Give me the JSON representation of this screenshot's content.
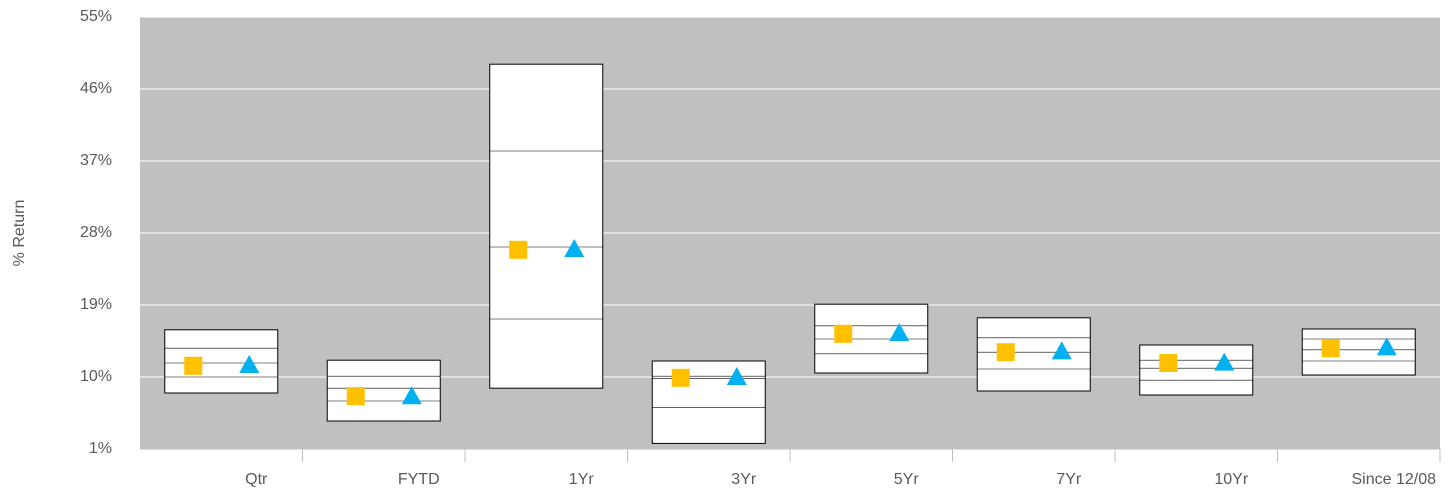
{
  "chart_data": {
    "type": "floating-box",
    "y_label": "% Return",
    "categories": [
      "Qtr",
      "FYTD",
      "1Yr",
      "3Yr",
      "5Yr",
      "7Yr",
      "10Yr",
      "Since 12/08"
    ],
    "box_high": [
      15.9,
      12.1,
      49.1,
      12.0,
      19.1,
      17.4,
      14.0,
      16.0
    ],
    "box_upper": [
      13.6,
      10.1,
      38.25,
      10.1,
      16.4,
      14.9,
      12.1,
      14.75
    ],
    "box_median": [
      11.75,
      8.6,
      26.25,
      9.8,
      14.75,
      13.1,
      11.1,
      13.4
    ],
    "box_lower": [
      10.0,
      7.0,
      17.25,
      6.2,
      12.9,
      11.0,
      9.6,
      12.0
    ],
    "box_low": [
      8.0,
      4.5,
      8.6,
      1.7,
      10.5,
      8.25,
      7.75,
      10.25
    ],
    "box_color": "#ffffff",
    "series": [
      {
        "marker": "square",
        "color": "#ffc000",
        "values": [
          11.4,
          7.6,
          25.9,
          9.9,
          15.4,
          13.1,
          11.75,
          13.6
        ]
      },
      {
        "marker": "triangle",
        "color": "#00b0f0",
        "values": [
          11.5,
          7.6,
          26.0,
          10.0,
          15.5,
          13.2,
          11.8,
          13.7
        ]
      }
    ],
    "ylim": [
      1,
      55
    ],
    "yticks": [
      {
        "value": 1,
        "label": "1%"
      },
      {
        "value": 10,
        "label": "10%"
      },
      {
        "value": 19,
        "label": "19%"
      },
      {
        "value": 28,
        "label": "28%"
      },
      {
        "value": 37,
        "label": "37%"
      },
      {
        "value": 46,
        "label": "46%"
      },
      {
        "value": 55,
        "label": "55%"
      }
    ],
    "grid": true,
    "plot_background": "#c0c0c0"
  }
}
